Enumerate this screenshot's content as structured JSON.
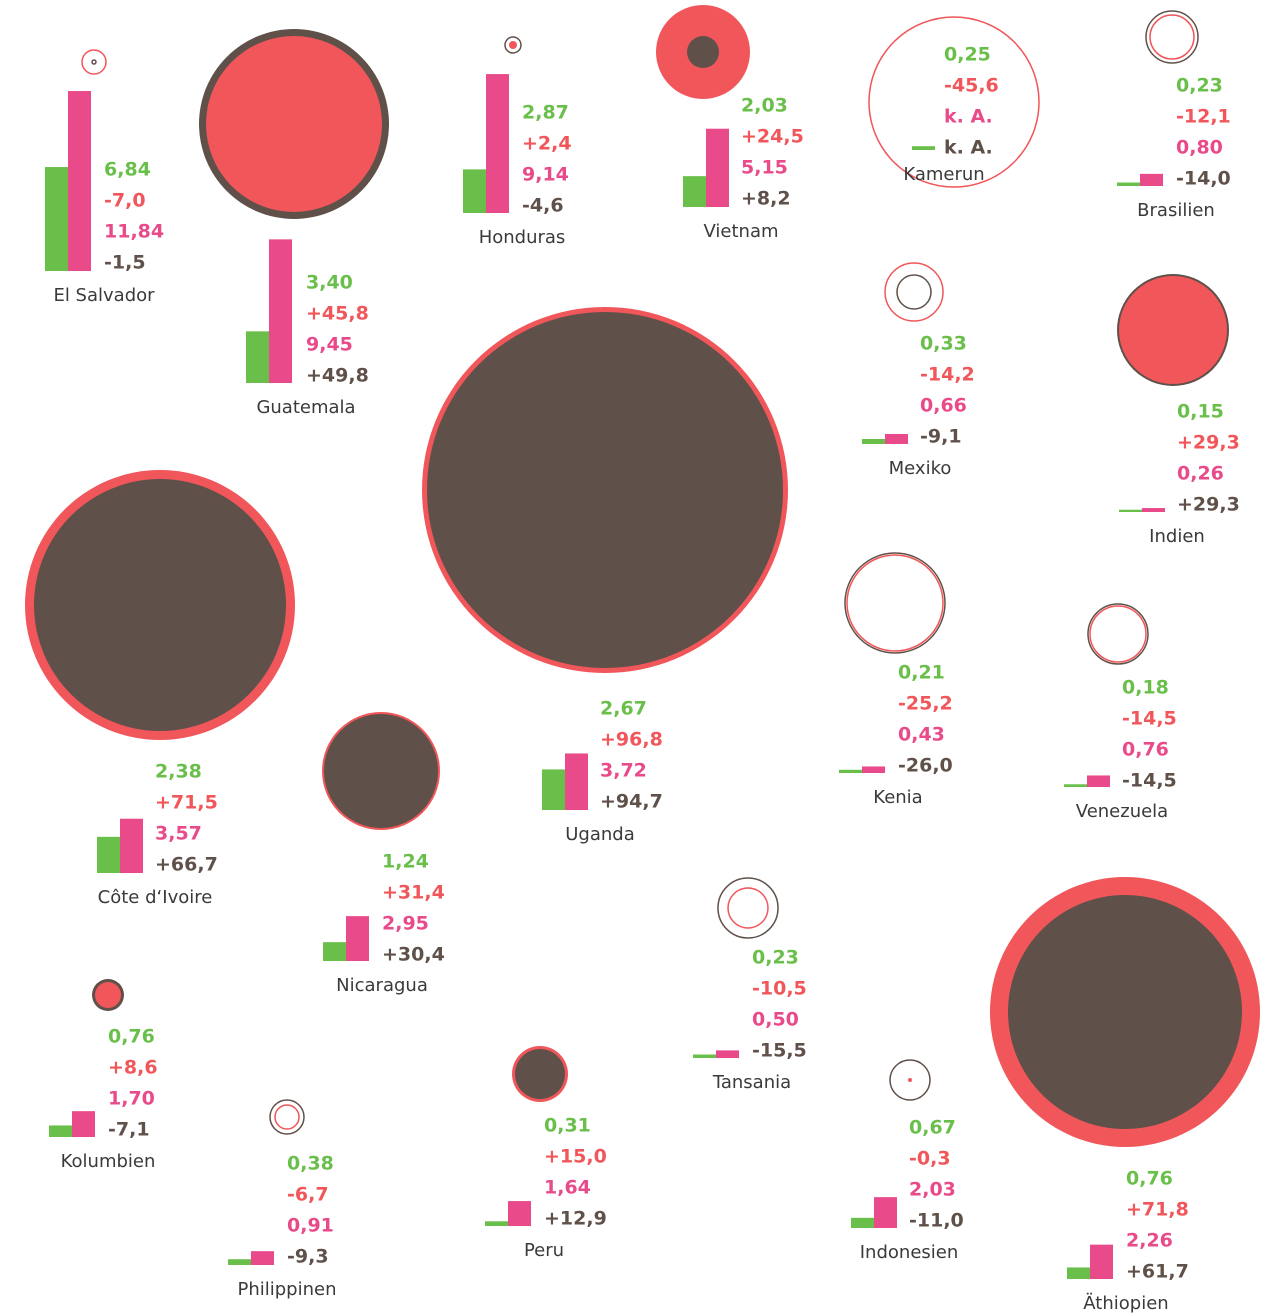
{
  "chart_data": {
    "type": "bubble-bar-panels",
    "colors": {
      "green": "#6abf4b",
      "red": "#f0565a",
      "pink": "#e84a8a",
      "brown": "#5f5149"
    },
    "countries": [
      {
        "name": "El Salvador",
        "values": [
          6.84,
          -7.0,
          11.84,
          -1.5
        ],
        "value_labels": [
          "6,84",
          "-7,0",
          "11,84",
          "-1,5"
        ],
        "circles": {
          "red": 12,
          "brown": 2
        }
      },
      {
        "name": "Guatemala",
        "values": [
          3.4,
          45.8,
          9.45,
          49.8
        ],
        "value_labels": [
          "3,40",
          "+45,8",
          "9,45",
          "+49,8"
        ],
        "circles": {
          "red": 88,
          "brown": 95
        }
      },
      {
        "name": "Honduras",
        "values": [
          2.87,
          2.4,
          9.14,
          -4.6
        ],
        "value_labels": [
          "2,87",
          "+2,4",
          "9,14",
          "-4,6"
        ],
        "circles": {
          "red": 4,
          "brown": 8
        }
      },
      {
        "name": "Vietnam",
        "values": [
          2.03,
          24.5,
          5.15,
          8.2
        ],
        "value_labels": [
          "2,03",
          "+24,5",
          "5,15",
          "+8,2"
        ],
        "circles": {
          "red": 47,
          "brown": 16
        }
      },
      {
        "name": "Kamerun",
        "values": [
          0.25,
          -45.6,
          null,
          null
        ],
        "value_labels": [
          "0,25",
          "-45,6",
          "k. A.",
          "k. A."
        ],
        "circles": {
          "red": 85,
          "brown": null
        }
      },
      {
        "name": "Brasilien",
        "values": [
          0.23,
          -12.1,
          0.8,
          -14.0
        ],
        "value_labels": [
          "0,23",
          "-12,1",
          "0,80",
          "-14,0"
        ],
        "circles": {
          "red": 22,
          "brown": 26
        }
      },
      {
        "name": "Mexiko",
        "values": [
          0.33,
          -14.2,
          0.66,
          -9.1
        ],
        "value_labels": [
          "0,33",
          "-14,2",
          "0,66",
          "-9,1"
        ],
        "circles": {
          "red": 29,
          "brown": 17
        }
      },
      {
        "name": "Indien",
        "values": [
          0.15,
          29.3,
          0.26,
          29.3
        ],
        "value_labels": [
          "0,15",
          "+29,3",
          "0,26",
          "+29,3"
        ],
        "circles": {
          "red": 54,
          "brown": 56
        }
      },
      {
        "name": "Côte d‘Ivoire",
        "values": [
          2.38,
          71.5,
          3.57,
          66.7
        ],
        "value_labels": [
          "2,38",
          "+71,5",
          "3,57",
          "+66,7"
        ],
        "circles": {
          "red": 135,
          "brown": 126
        }
      },
      {
        "name": "Uganda",
        "values": [
          2.67,
          96.8,
          3.72,
          94.7
        ],
        "value_labels": [
          "2,67",
          "+96,8",
          "3,72",
          "+94,7"
        ],
        "circles": {
          "red": 183,
          "brown": 178
        }
      },
      {
        "name": "Kenia",
        "values": [
          0.21,
          -25.2,
          0.43,
          -26.0
        ],
        "value_labels": [
          "0,21",
          "-25,2",
          "0,43",
          "-26,0"
        ],
        "circles": {
          "red": 48,
          "brown": 50
        }
      },
      {
        "name": "Venezuela",
        "values": [
          0.18,
          -14.5,
          0.76,
          -14.5
        ],
        "value_labels": [
          "0,18",
          "-14,5",
          "0,76",
          "-14,5"
        ],
        "circles": {
          "red": 28,
          "brown": 30
        }
      },
      {
        "name": "Nicaragua",
        "values": [
          1.24,
          31.4,
          2.95,
          30.4
        ],
        "value_labels": [
          "1,24",
          "+31,4",
          "2,95",
          "+30,4"
        ],
        "circles": {
          "red": 59,
          "brown": 57
        }
      },
      {
        "name": "Tansania",
        "values": [
          0.23,
          -10.5,
          0.5,
          -15.5
        ],
        "value_labels": [
          "0,23",
          "-10,5",
          "0,50",
          "-15,5"
        ],
        "circles": {
          "red": 20,
          "brown": 30
        }
      },
      {
        "name": "Kolumbien",
        "values": [
          0.76,
          8.6,
          1.7,
          -7.1
        ],
        "value_labels": [
          "0,76",
          "+8,6",
          "1,70",
          "-7,1"
        ],
        "circles": {
          "red": 13,
          "brown": 16
        }
      },
      {
        "name": "Philippinen",
        "values": [
          0.38,
          -6.7,
          0.91,
          -9.3
        ],
        "value_labels": [
          "0,38",
          "-6,7",
          "0,91",
          "-9,3"
        ],
        "circles": {
          "red": 12,
          "brown": 17
        }
      },
      {
        "name": "Peru",
        "values": [
          0.31,
          15.0,
          1.64,
          12.9
        ],
        "value_labels": [
          "0,31",
          "+15,0",
          "1,64",
          "+12,9"
        ],
        "circles": {
          "red": 28,
          "brown": 25
        }
      },
      {
        "name": "Indonesien",
        "values": [
          0.67,
          -0.3,
          2.03,
          -11.0
        ],
        "value_labels": [
          "0,67",
          "-0,3",
          "2,03",
          "-11,0"
        ],
        "circles": {
          "red": 2,
          "brown": 20
        }
      },
      {
        "name": "Äthiopien",
        "values": [
          0.76,
          71.8,
          2.26,
          61.7
        ],
        "value_labels": [
          "0,76",
          "+71,8",
          "2,26",
          "+61,7"
        ],
        "circles": {
          "red": 135,
          "brown": 117
        }
      }
    ]
  }
}
